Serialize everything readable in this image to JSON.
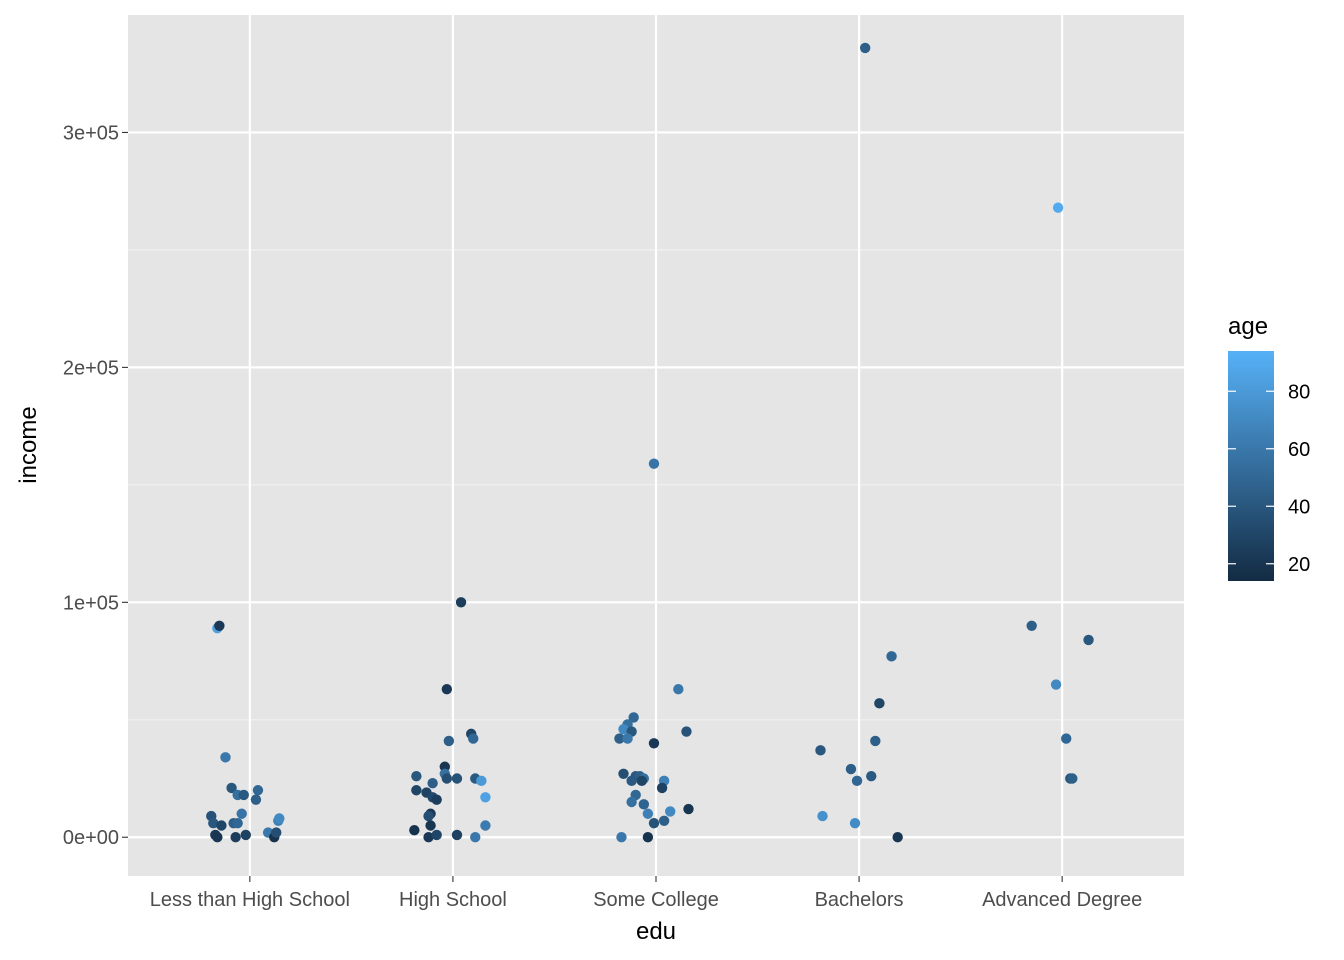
{
  "chart_data": {
    "type": "scatter",
    "xlabel": "edu",
    "ylabel": "income",
    "categories": [
      "Less than High School",
      "High School",
      "Some College",
      "Bachelors",
      "Advanced Degree"
    ],
    "ylim": [
      -16500,
      350000
    ],
    "yticks": [
      0,
      100000,
      200000,
      300000
    ],
    "ytick_labels": [
      "0e+00",
      "1e+05",
      "2e+05",
      "3e+05"
    ],
    "grid": true,
    "jitter": true,
    "color_scale": {
      "variable": "age",
      "range": [
        14,
        94
      ],
      "low_color": "#132B43",
      "high_color": "#56B1F7",
      "ticks": [
        20,
        40,
        60,
        80
      ]
    },
    "legend": {
      "title": "age",
      "placement": "right"
    },
    "points": [
      {
        "x": 0,
        "jx": -0.16,
        "y": 89000,
        "age": 83
      },
      {
        "x": 0,
        "jx": -0.15,
        "y": 90000,
        "age": 22
      },
      {
        "x": 0,
        "jx": -0.12,
        "y": 34000,
        "age": 60
      },
      {
        "x": 0,
        "jx": -0.09,
        "y": 21000,
        "age": 40
      },
      {
        "x": 0,
        "jx": -0.06,
        "y": 18000,
        "age": 55
      },
      {
        "x": 0,
        "jx": -0.03,
        "y": 18000,
        "age": 42
      },
      {
        "x": 0,
        "jx": 0.04,
        "y": 20000,
        "age": 50
      },
      {
        "x": 0,
        "jx": 0.03,
        "y": 16000,
        "age": 45
      },
      {
        "x": 0,
        "jx": -0.04,
        "y": 10000,
        "age": 58
      },
      {
        "x": 0,
        "jx": -0.19,
        "y": 9000,
        "age": 38
      },
      {
        "x": 0,
        "jx": -0.18,
        "y": 6000,
        "age": 40
      },
      {
        "x": 0,
        "jx": -0.14,
        "y": 5000,
        "age": 30
      },
      {
        "x": 0,
        "jx": -0.08,
        "y": 6000,
        "age": 45
      },
      {
        "x": 0,
        "jx": -0.06,
        "y": 6000,
        "age": 50
      },
      {
        "x": 0,
        "jx": -0.17,
        "y": 1000,
        "age": 22
      },
      {
        "x": 0,
        "jx": -0.16,
        "y": 0,
        "age": 20
      },
      {
        "x": 0,
        "jx": -0.07,
        "y": 0,
        "age": 25
      },
      {
        "x": 0,
        "jx": -0.02,
        "y": 1000,
        "age": 28
      },
      {
        "x": 0,
        "jx": 0.09,
        "y": 2000,
        "age": 60
      },
      {
        "x": 0,
        "jx": 0.12,
        "y": 0,
        "age": 18
      },
      {
        "x": 0,
        "jx": 0.13,
        "y": 2000,
        "age": 35
      },
      {
        "x": 0,
        "jx": 0.14,
        "y": 7000,
        "age": 65
      },
      {
        "x": 0,
        "jx": 0.145,
        "y": 8000,
        "age": 70
      },
      {
        "x": 1,
        "jx": 0.04,
        "y": 100000,
        "age": 25
      },
      {
        "x": 1,
        "jx": -0.03,
        "y": 63000,
        "age": 22
      },
      {
        "x": 1,
        "jx": 0.09,
        "y": 44000,
        "age": 30
      },
      {
        "x": 1,
        "jx": 0.1,
        "y": 42000,
        "age": 50
      },
      {
        "x": 1,
        "jx": -0.02,
        "y": 41000,
        "age": 45
      },
      {
        "x": 1,
        "jx": -0.04,
        "y": 30000,
        "age": 20
      },
      {
        "x": 1,
        "jx": -0.18,
        "y": 26000,
        "age": 40
      },
      {
        "x": 1,
        "jx": -0.04,
        "y": 27000,
        "age": 55
      },
      {
        "x": 1,
        "jx": -0.03,
        "y": 25000,
        "age": 35
      },
      {
        "x": 1,
        "jx": 0.02,
        "y": 25000,
        "age": 38
      },
      {
        "x": 1,
        "jx": 0.11,
        "y": 25000,
        "age": 42
      },
      {
        "x": 1,
        "jx": 0.14,
        "y": 24000,
        "age": 80
      },
      {
        "x": 1,
        "jx": -0.1,
        "y": 23000,
        "age": 45
      },
      {
        "x": 1,
        "jx": -0.18,
        "y": 20000,
        "age": 30
      },
      {
        "x": 1,
        "jx": -0.13,
        "y": 19000,
        "age": 28
      },
      {
        "x": 1,
        "jx": 0.16,
        "y": 17000,
        "age": 85
      },
      {
        "x": 1,
        "jx": -0.1,
        "y": 17000,
        "age": 32
      },
      {
        "x": 1,
        "jx": -0.08,
        "y": 16000,
        "age": 25
      },
      {
        "x": 1,
        "jx": -0.11,
        "y": 10000,
        "age": 22
      },
      {
        "x": 1,
        "jx": -0.12,
        "y": 9000,
        "age": 35
      },
      {
        "x": 1,
        "jx": -0.11,
        "y": 5000,
        "age": 20
      },
      {
        "x": 1,
        "jx": 0.16,
        "y": 5000,
        "age": 62
      },
      {
        "x": 1,
        "jx": -0.19,
        "y": 3000,
        "age": 18
      },
      {
        "x": 1,
        "jx": -0.12,
        "y": 0,
        "age": 22
      },
      {
        "x": 1,
        "jx": -0.08,
        "y": 1000,
        "age": 30
      },
      {
        "x": 1,
        "jx": 0.02,
        "y": 1000,
        "age": 28
      },
      {
        "x": 1,
        "jx": 0.11,
        "y": 0,
        "age": 60
      },
      {
        "x": 2,
        "jx": -0.01,
        "y": 159000,
        "age": 58
      },
      {
        "x": 2,
        "jx": 0.11,
        "y": 63000,
        "age": 60
      },
      {
        "x": 2,
        "jx": -0.11,
        "y": 51000,
        "age": 50
      },
      {
        "x": 2,
        "jx": -0.14,
        "y": 48000,
        "age": 55
      },
      {
        "x": 2,
        "jx": -0.16,
        "y": 46000,
        "age": 70
      },
      {
        "x": 2,
        "jx": -0.12,
        "y": 45000,
        "age": 40
      },
      {
        "x": 2,
        "jx": 0.15,
        "y": 45000,
        "age": 38
      },
      {
        "x": 2,
        "jx": -0.18,
        "y": 42000,
        "age": 45
      },
      {
        "x": 2,
        "jx": -0.14,
        "y": 42000,
        "age": 60
      },
      {
        "x": 2,
        "jx": -0.01,
        "y": 40000,
        "age": 22
      },
      {
        "x": 2,
        "jx": -0.16,
        "y": 27000,
        "age": 35
      },
      {
        "x": 2,
        "jx": -0.1,
        "y": 26000,
        "age": 40
      },
      {
        "x": 2,
        "jx": -0.08,
        "y": 26000,
        "age": 45
      },
      {
        "x": 2,
        "jx": -0.06,
        "y": 25000,
        "age": 55
      },
      {
        "x": 2,
        "jx": -0.07,
        "y": 24000,
        "age": 30
      },
      {
        "x": 2,
        "jx": -0.12,
        "y": 24000,
        "age": 42
      },
      {
        "x": 2,
        "jx": 0.04,
        "y": 24000,
        "age": 65
      },
      {
        "x": 2,
        "jx": 0.03,
        "y": 21000,
        "age": 28
      },
      {
        "x": 2,
        "jx": -0.1,
        "y": 18000,
        "age": 50
      },
      {
        "x": 2,
        "jx": -0.12,
        "y": 15000,
        "age": 55
      },
      {
        "x": 2,
        "jx": -0.06,
        "y": 14000,
        "age": 48
      },
      {
        "x": 2,
        "jx": 0.16,
        "y": 12000,
        "age": 20
      },
      {
        "x": 2,
        "jx": 0.07,
        "y": 11000,
        "age": 70
      },
      {
        "x": 2,
        "jx": -0.04,
        "y": 10000,
        "age": 65
      },
      {
        "x": 2,
        "jx": 0.04,
        "y": 7000,
        "age": 45
      },
      {
        "x": 2,
        "jx": -0.01,
        "y": 6000,
        "age": 38
      },
      {
        "x": 2,
        "jx": -0.17,
        "y": 0,
        "age": 60
      },
      {
        "x": 2,
        "jx": -0.04,
        "y": 0,
        "age": 18
      },
      {
        "x": 3,
        "jx": 0.03,
        "y": 336000,
        "age": 45
      },
      {
        "x": 3,
        "jx": 0.16,
        "y": 77000,
        "age": 50
      },
      {
        "x": 3,
        "jx": 0.1,
        "y": 57000,
        "age": 30
      },
      {
        "x": 3,
        "jx": 0.08,
        "y": 41000,
        "age": 45
      },
      {
        "x": 3,
        "jx": -0.19,
        "y": 37000,
        "age": 40
      },
      {
        "x": 3,
        "jx": -0.04,
        "y": 29000,
        "age": 45
      },
      {
        "x": 3,
        "jx": 0.06,
        "y": 26000,
        "age": 42
      },
      {
        "x": 3,
        "jx": -0.01,
        "y": 24000,
        "age": 50
      },
      {
        "x": 3,
        "jx": -0.18,
        "y": 9000,
        "age": 75
      },
      {
        "x": 3,
        "jx": -0.02,
        "y": 6000,
        "age": 72
      },
      {
        "x": 3,
        "jx": 0.19,
        "y": 0,
        "age": 20
      },
      {
        "x": 4,
        "jx": -0.02,
        "y": 268000,
        "age": 90
      },
      {
        "x": 4,
        "jx": -0.15,
        "y": 90000,
        "age": 45
      },
      {
        "x": 4,
        "jx": 0.13,
        "y": 84000,
        "age": 40
      },
      {
        "x": 4,
        "jx": -0.03,
        "y": 65000,
        "age": 70
      },
      {
        "x": 4,
        "jx": 0.02,
        "y": 42000,
        "age": 50
      },
      {
        "x": 4,
        "jx": 0.04,
        "y": 25000,
        "age": 38
      },
      {
        "x": 4,
        "jx": 0.05,
        "y": 25000,
        "age": 45
      }
    ]
  }
}
